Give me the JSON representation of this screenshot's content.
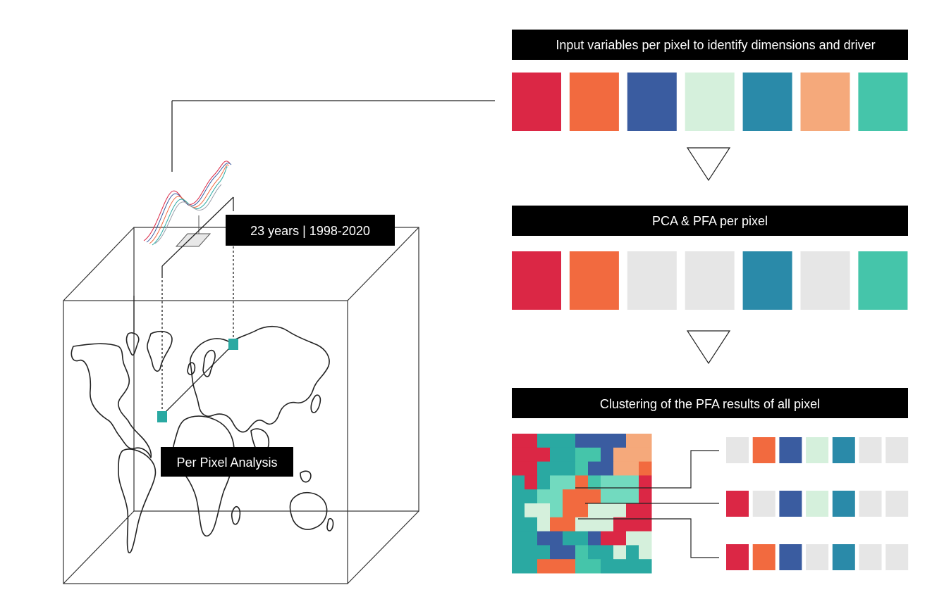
{
  "header_top": {
    "text": "Input variables per pixel to identify dimensions and driver",
    "colors": [
      "#DB2745",
      "#F26A3F",
      "#3A5CA0",
      "#D5F0DC",
      "#2A8AA9",
      "#F5A97B",
      "#45C5AA"
    ]
  },
  "header_mid": {
    "text": "PCA & PFA per pixel",
    "colors": [
      "#DB2745",
      "#F26A3F",
      "#E6E6E6",
      "#E6E6E6",
      "#2A8AA9",
      "#E6E6E6",
      "#45C5AA"
    ]
  },
  "header_bottom": {
    "text": "Clustering of the PFA results of all pixel"
  },
  "cube": {
    "years_label": "23 years | 1998-2020",
    "analysis_label": "Per Pixel Analysis",
    "pixel_color": "#2AA9A2"
  },
  "palette": {
    "red": "#DB2745",
    "orange": "#F26A3F",
    "blue": "#3A5CA0",
    "pale_green": "#D5F0DC",
    "teal": "#2A8AA9",
    "peach": "#F5A97B",
    "green": "#45C5AA",
    "mint": "#72DABF",
    "cyan": "#2AA9A2",
    "grey": "#E6E6E6"
  },
  "cluster_grid": [
    "RRTTTBBBBPP",
    "RRRTTGGBPPP",
    "RRTTTGBBPPO",
    "TRTMMOGMMMR",
    "TCMMOOOMMMR",
    "TWWMOOWWWRR",
    "TTWOOWWWRRR",
    "TTBBTTBRRWW",
    "TTTBBGTTWTW",
    "TTOOOGGTTTT"
  ],
  "cluster_profiles": [
    [
      "#E6E6E6",
      "#F26A3F",
      "#3A5CA0",
      "#D5F0DC",
      "#2A8AA9",
      "#E6E6E6",
      "#E6E6E6"
    ],
    [
      "#DB2745",
      "#E6E6E6",
      "#3A5CA0",
      "#D5F0DC",
      "#2A8AA9",
      "#E6E6E6",
      "#E6E6E6"
    ],
    [
      "#DB2745",
      "#F26A3F",
      "#3A5CA0",
      "#E6E6E6",
      "#2A8AA9",
      "#E6E6E6",
      "#E6E6E6"
    ]
  ]
}
